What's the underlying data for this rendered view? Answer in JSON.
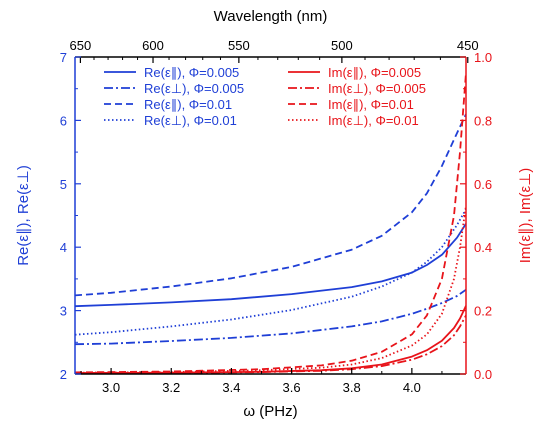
{
  "chart_data": {
    "type": "line",
    "x_label": "ω (PHz)",
    "x_range": [
      2.88,
      4.18
    ],
    "x_ticks": [
      3.0,
      3.2,
      3.4,
      3.6,
      3.8,
      4.0
    ],
    "x_tick_labels": [
      "3.0",
      "3.2",
      "3.4",
      "3.6",
      "3.8",
      "4.0"
    ],
    "top_label": "Wavelength (nm)",
    "top_ticks_nm": [
      650,
      600,
      550,
      500,
      450
    ],
    "top_tick_labels": [
      "650",
      "600",
      "550",
      "500",
      "450"
    ],
    "left_label": "Re(ε∥),  Re(ε⊥)",
    "left_range": [
      2,
      7
    ],
    "left_ticks": [
      2,
      3,
      4,
      5,
      6,
      7
    ],
    "left_tick_labels": [
      "2",
      "3",
      "4",
      "5",
      "6",
      "7"
    ],
    "right_label": "Im(ε∥),  Im(ε⊥)",
    "right_range": [
      0,
      1.0
    ],
    "right_ticks": [
      0,
      0.2,
      0.4,
      0.6,
      0.8,
      1.0
    ],
    "right_tick_labels": [
      "0.0",
      "0.2",
      "0.4",
      "0.6",
      "0.8",
      "1.0"
    ],
    "colors": {
      "re": "#1f3fd6",
      "im": "#e8141a",
      "axis": "#000000"
    },
    "legend_placement": "top-left and top-right",
    "series": [
      {
        "name": "Re(ε∥), Φ=0.005",
        "axis": "left",
        "dash": "solid",
        "x": [
          2.88,
          3.0,
          3.2,
          3.4,
          3.6,
          3.8,
          3.9,
          4.0,
          4.05,
          4.1,
          4.15,
          4.18
        ],
        "y": [
          3.07,
          3.09,
          3.13,
          3.18,
          3.26,
          3.37,
          3.46,
          3.6,
          3.72,
          3.88,
          4.15,
          4.37
        ]
      },
      {
        "name": "Re(ε⊥), Φ=0.005",
        "axis": "left",
        "dash": "dashdot",
        "x": [
          2.88,
          3.0,
          3.2,
          3.4,
          3.6,
          3.8,
          3.9,
          4.0,
          4.05,
          4.1,
          4.15,
          4.18
        ],
        "y": [
          2.47,
          2.48,
          2.52,
          2.57,
          2.64,
          2.75,
          2.83,
          2.95,
          3.03,
          3.12,
          3.23,
          3.33
        ]
      },
      {
        "name": "Re(ε∥), Φ=0.01",
        "axis": "left",
        "dash": "dashed",
        "x": [
          2.88,
          3.0,
          3.2,
          3.4,
          3.6,
          3.8,
          3.9,
          4.0,
          4.05,
          4.1,
          4.15,
          4.18
        ],
        "y": [
          3.24,
          3.28,
          3.38,
          3.51,
          3.69,
          3.96,
          4.18,
          4.55,
          4.85,
          5.28,
          5.8,
          6.1
        ]
      },
      {
        "name": "Re(ε⊥), Φ=0.01",
        "axis": "left",
        "dash": "dotted",
        "x": [
          2.88,
          3.0,
          3.2,
          3.4,
          3.6,
          3.8,
          3.9,
          4.0,
          4.05,
          4.1,
          4.15,
          4.18
        ],
        "y": [
          2.62,
          2.66,
          2.75,
          2.86,
          3.01,
          3.22,
          3.38,
          3.6,
          3.77,
          4.0,
          4.35,
          4.6
        ]
      },
      {
        "name": "Im(ε∥), Φ=0.005",
        "axis": "right",
        "dash": "solid",
        "x": [
          2.88,
          3.2,
          3.5,
          3.7,
          3.8,
          3.9,
          4.0,
          4.05,
          4.1,
          4.14,
          4.16,
          4.18
        ],
        "y": [
          0.003,
          0.004,
          0.007,
          0.012,
          0.018,
          0.03,
          0.055,
          0.075,
          0.105,
          0.145,
          0.175,
          0.215
        ]
      },
      {
        "name": "Im(ε⊥), Φ=0.005",
        "axis": "right",
        "dash": "dashdot",
        "x": [
          2.88,
          3.2,
          3.5,
          3.7,
          3.8,
          3.9,
          4.0,
          4.05,
          4.1,
          4.14,
          4.16,
          4.18
        ],
        "y": [
          0.002,
          0.003,
          0.006,
          0.01,
          0.015,
          0.025,
          0.045,
          0.062,
          0.088,
          0.122,
          0.15,
          0.185
        ]
      },
      {
        "name": "Im(ε∥), Φ=0.01",
        "axis": "right",
        "dash": "dashed",
        "x": [
          2.88,
          3.2,
          3.5,
          3.7,
          3.8,
          3.9,
          4.0,
          4.05,
          4.1,
          4.14,
          4.16,
          4.18
        ],
        "y": [
          0.005,
          0.008,
          0.015,
          0.027,
          0.042,
          0.07,
          0.125,
          0.185,
          0.3,
          0.5,
          0.7,
          0.95
        ]
      },
      {
        "name": "Im(ε⊥), Φ=0.01",
        "axis": "right",
        "dash": "dotted",
        "x": [
          2.88,
          3.2,
          3.5,
          3.7,
          3.8,
          3.9,
          4.0,
          4.05,
          4.1,
          4.14,
          4.16,
          4.18
        ],
        "y": [
          0.004,
          0.006,
          0.012,
          0.02,
          0.03,
          0.05,
          0.09,
          0.125,
          0.19,
          0.3,
          0.4,
          0.53
        ]
      }
    ]
  }
}
